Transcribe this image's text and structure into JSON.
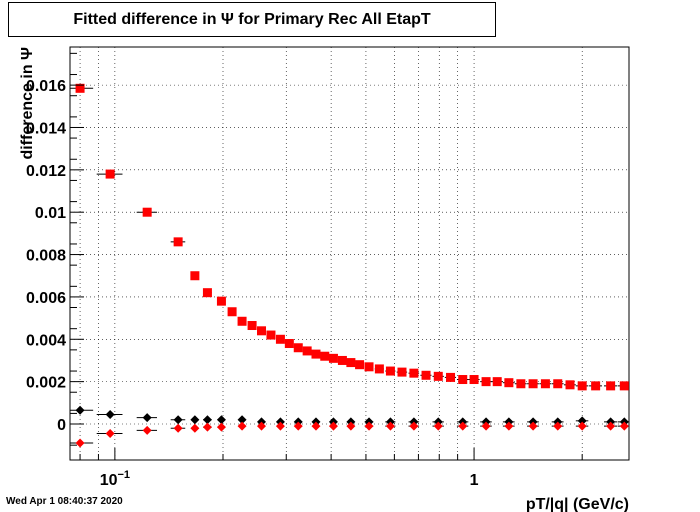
{
  "chart_data": {
    "type": "scatter",
    "title": "Fitted difference in  Ψ  for Primary Rec All EtapT",
    "xlabel": "pT/|q| (GeV/c)",
    "ylabel": "difference in  Ψ",
    "x_scale": "log",
    "xlim": [
      0.075,
      2.7
    ],
    "ylim": [
      -0.0017,
      0.0178
    ],
    "grid": true,
    "x_ticks": [
      {
        "value": 0.1,
        "label": "10",
        "sup": "−1"
      },
      {
        "value": 1,
        "label": "1",
        "sup": ""
      }
    ],
    "y_ticks": [
      {
        "value": 0,
        "label": "0"
      },
      {
        "value": 0.002,
        "label": "0.002"
      },
      {
        "value": 0.004,
        "label": "0.004"
      },
      {
        "value": 0.006,
        "label": "0.006"
      },
      {
        "value": 0.008,
        "label": "0.008"
      },
      {
        "value": 0.01,
        "label": "0.01"
      },
      {
        "value": 0.012,
        "label": "0.012"
      },
      {
        "value": 0.014,
        "label": "0.014"
      },
      {
        "value": 0.016,
        "label": "0.016"
      }
    ],
    "series": [
      {
        "marker": "square",
        "color": "#ff0000",
        "x": [
          0.08,
          0.097,
          0.123,
          0.15,
          0.167,
          0.181,
          0.198,
          0.212,
          0.226,
          0.241,
          0.256,
          0.272,
          0.289,
          0.306,
          0.324,
          0.343,
          0.363,
          0.384,
          0.406,
          0.43,
          0.454,
          0.48,
          0.51,
          0.545,
          0.585,
          0.63,
          0.68,
          0.735,
          0.795,
          0.86,
          0.93,
          1.0,
          1.08,
          1.16,
          1.25,
          1.35,
          1.46,
          1.58,
          1.71,
          1.85,
          2.0,
          2.18,
          2.4,
          2.62
        ],
        "xerr": [
          0.007,
          0.008,
          0.008,
          0.007,
          0.004,
          0.005,
          0.005,
          0.004,
          0.005,
          0.005,
          0.005,
          0.005,
          0.006,
          0.006,
          0.007,
          0.007,
          0.008,
          0.008,
          0.009,
          0.009,
          0.01,
          0.011,
          0.014,
          0.016,
          0.019,
          0.021,
          0.023,
          0.026,
          0.029,
          0.031,
          0.034,
          0.036,
          0.04,
          0.043,
          0.047,
          0.051,
          0.055,
          0.06,
          0.065,
          0.07,
          0.08,
          0.09,
          0.1,
          0.11
        ],
        "y": [
          0.01585,
          0.0118,
          0.01,
          0.0086,
          0.007,
          0.0062,
          0.0058,
          0.0053,
          0.00485,
          0.00465,
          0.0044,
          0.0042,
          0.004,
          0.0038,
          0.0036,
          0.00345,
          0.0033,
          0.0032,
          0.0031,
          0.003,
          0.0029,
          0.0028,
          0.0027,
          0.0026,
          0.0025,
          0.00245,
          0.0024,
          0.0023,
          0.00225,
          0.0022,
          0.0021,
          0.0021,
          0.002,
          0.002,
          0.00195,
          0.0019,
          0.0019,
          0.0019,
          0.0019,
          0.00185,
          0.0018,
          0.0018,
          0.0018,
          0.0018
        ]
      },
      {
        "marker": "diamond",
        "color": "#000000",
        "x": [
          0.08,
          0.097,
          0.123,
          0.15,
          0.167,
          0.181,
          0.198,
          0.226,
          0.256,
          0.289,
          0.324,
          0.363,
          0.406,
          0.454,
          0.51,
          0.585,
          0.68,
          0.795,
          0.93,
          1.08,
          1.25,
          1.46,
          1.71,
          2.0,
          2.4,
          2.62
        ],
        "xerr": [
          0.007,
          0.008,
          0.008,
          0.007,
          0.004,
          0.005,
          0.005,
          0.005,
          0.005,
          0.006,
          0.007,
          0.008,
          0.009,
          0.01,
          0.014,
          0.019,
          0.023,
          0.029,
          0.034,
          0.04,
          0.047,
          0.055,
          0.065,
          0.08,
          0.1,
          0.11
        ],
        "y": [
          0.00065,
          0.00045,
          0.0003,
          0.0002,
          0.0002,
          0.0002,
          0.0002,
          0.0002,
          0.0001,
          0.0001,
          0.0001,
          0.0001,
          0.0001,
          0.0001,
          0.0001,
          0.0001,
          0.0001,
          0.0001,
          0.0001,
          0.0001,
          0.0001,
          0.0001,
          0.0001,
          0.00015,
          0.0001,
          0.0001
        ]
      },
      {
        "marker": "diamond",
        "color": "#ff0000",
        "x": [
          0.08,
          0.097,
          0.123,
          0.15,
          0.167,
          0.181,
          0.198,
          0.226,
          0.256,
          0.289,
          0.324,
          0.363,
          0.406,
          0.454,
          0.51,
          0.585,
          0.68,
          0.795,
          0.93,
          1.08,
          1.25,
          1.46,
          1.71,
          2.0,
          2.4,
          2.62
        ],
        "xerr": [
          0.007,
          0.008,
          0.008,
          0.007,
          0.004,
          0.005,
          0.005,
          0.005,
          0.005,
          0.006,
          0.007,
          0.008,
          0.009,
          0.01,
          0.014,
          0.019,
          0.023,
          0.029,
          0.034,
          0.04,
          0.047,
          0.055,
          0.065,
          0.08,
          0.1,
          0.11
        ],
        "y": [
          -0.0009,
          -0.00045,
          -0.0003,
          -0.0002,
          -0.0002,
          -0.00015,
          -0.00015,
          -0.0001,
          -0.0001,
          -0.0001,
          -0.0001,
          -0.0001,
          -0.0001,
          -0.0001,
          -0.0001,
          -0.0001,
          -0.0001,
          -0.0001,
          -0.0001,
          -0.0001,
          -0.0001,
          -0.0001,
          -0.0001,
          -0.0001,
          -0.0001,
          -0.0001
        ]
      }
    ]
  },
  "timestamp": "Wed Apr  1 08:40:37 2020"
}
